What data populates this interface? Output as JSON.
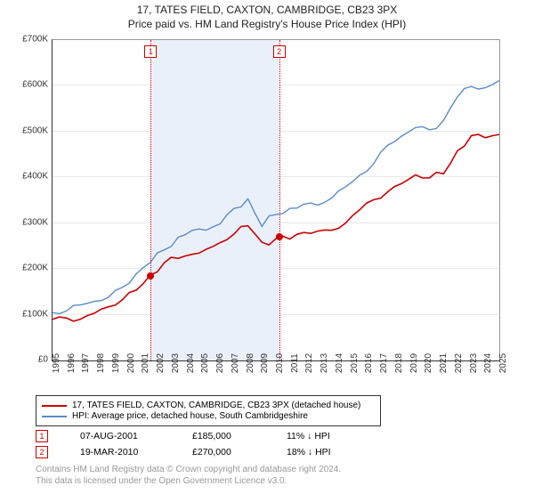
{
  "chart": {
    "title": "17, TATES FIELD, CAXTON, CAMBRIDGE, CB23 3PX",
    "subtitle": "Price paid vs. HM Land Registry's House Price Index (HPI)",
    "title_fontsize": 12,
    "background_color": "#ffffff",
    "shaded_band_color": "#eaf0fa",
    "grid_color": "#e8e8e8",
    "x_axis": {
      "years": [
        1995,
        1996,
        1997,
        1998,
        1999,
        2000,
        2001,
        2002,
        2003,
        2004,
        2005,
        2006,
        2007,
        2008,
        2009,
        2010,
        2011,
        2012,
        2013,
        2014,
        2015,
        2016,
        2017,
        2018,
        2019,
        2020,
        2021,
        2022,
        2023,
        2024,
        2025
      ],
      "label_fontsize": 10
    },
    "y_axis": {
      "min": 0,
      "max": 700,
      "tick_step": 100,
      "unit_prefix": "£",
      "unit_suffix": "K",
      "ticks": [
        "£0",
        "£100K",
        "£200K",
        "£300K",
        "£400K",
        "£500K",
        "£600K",
        "£700K"
      ],
      "label_fontsize": 10
    },
    "series": [
      {
        "name": "property",
        "label": "17, TATES FIELD, CAXTON, CAMBRIDGE, CB23 3PX (detached house)",
        "color": "#cc0000",
        "line_width": 1.6,
        "data_thousands": [
          88,
          90,
          95,
          103,
          114,
          132,
          158,
          185,
          210,
          225,
          235,
          240,
          255,
          280,
          295,
          255,
          265,
          270,
          278,
          280,
          285,
          305,
          325,
          350,
          370,
          390,
          400,
          400,
          410,
          460,
          485,
          490,
          495
        ]
      },
      {
        "name": "hpi",
        "label": "HPI: Average price, detached house, South Cambridgeshire",
        "color": "#5a8bc9",
        "line_width": 1.4,
        "data_thousands": [
          108,
          110,
          118,
          128,
          142,
          160,
          185,
          215,
          245,
          268,
          280,
          288,
          300,
          330,
          350,
          298,
          318,
          330,
          340,
          345,
          352,
          378,
          405,
          435,
          465,
          490,
          510,
          508,
          518,
          578,
          600,
          598,
          605
        ]
      }
    ],
    "sale_markers": [
      {
        "n": "1",
        "year": 2001.6,
        "price_k": 185
      },
      {
        "n": "2",
        "year": 2010.22,
        "price_k": 270
      }
    ],
    "shaded_range": {
      "from_year": 2001.6,
      "to_year": 2010.22
    }
  },
  "legend": {
    "items": [
      {
        "color": "#cc0000",
        "text": "17, TATES FIELD, CAXTON, CAMBRIDGE, CB23 3PX (detached house)"
      },
      {
        "color": "#5a8bc9",
        "text": "HPI: Average price, detached house, South Cambridgeshire"
      }
    ]
  },
  "sales": [
    {
      "n": "1",
      "date": "07-AUG-2001",
      "price": "£185,000",
      "delta": "11% ↓ HPI"
    },
    {
      "n": "2",
      "date": "19-MAR-2010",
      "price": "£270,000",
      "delta": "18% ↓ HPI"
    }
  ],
  "attribution": {
    "line1": "Contains HM Land Registry data © Crown copyright and database right 2024.",
    "line2": "This data is licensed under the Open Government Licence v3.0."
  }
}
